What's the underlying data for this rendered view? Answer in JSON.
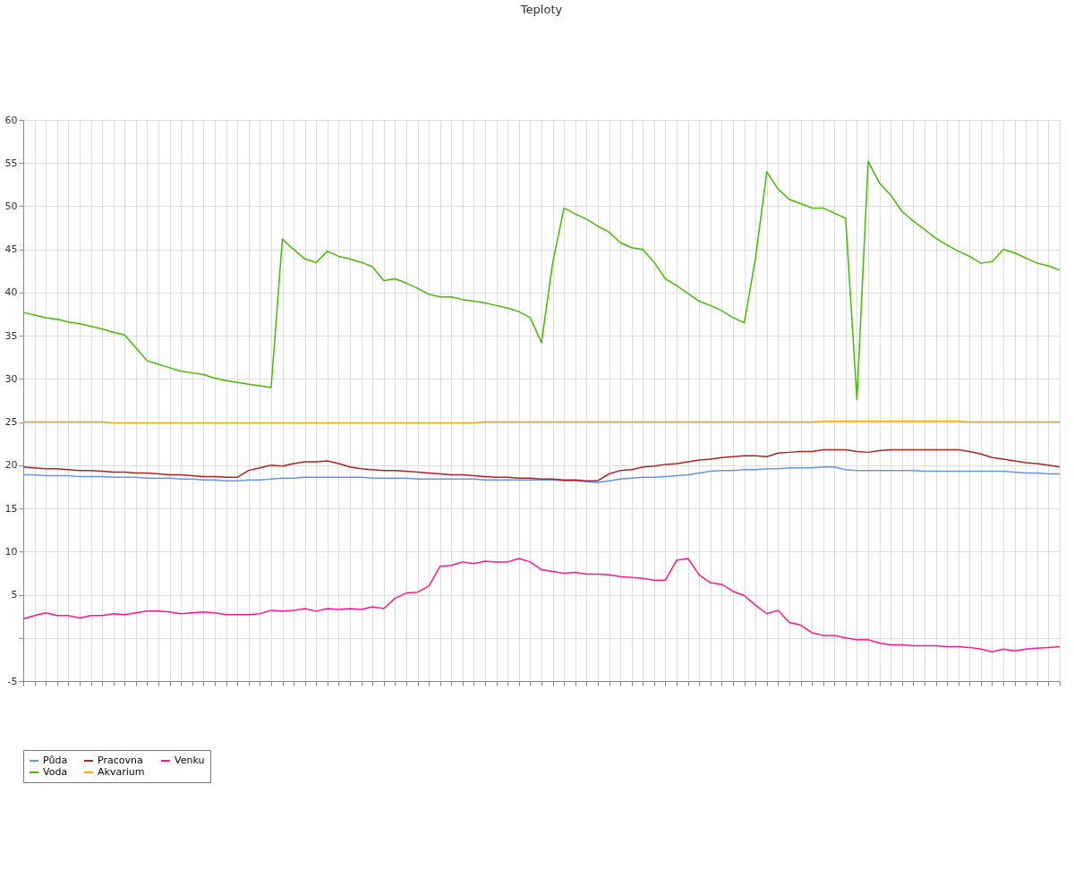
{
  "chart_data": {
    "type": "line",
    "title": "Teploty",
    "categories": [
      null,
      null,
      null,
      null,
      null,
      null,
      null,
      null,
      null,
      null,
      null,
      null,
      null,
      null,
      null,
      null,
      null,
      null,
      null,
      null,
      null,
      null,
      null,
      null,
      null,
      null,
      null,
      null,
      null,
      null,
      null,
      null,
      null,
      null,
      null,
      null,
      null,
      null,
      null,
      null,
      null,
      null,
      null,
      null,
      null,
      null,
      null,
      null,
      null,
      null,
      null,
      null,
      null,
      null,
      null,
      null,
      null,
      null,
      null,
      null,
      null,
      null,
      null,
      null,
      null,
      null,
      null,
      null,
      null,
      null,
      null,
      null,
      null,
      null,
      null,
      null,
      null,
      null,
      null,
      null,
      null,
      null,
      null,
      null,
      null,
      null,
      null,
      null,
      null,
      null,
      null,
      null,
      null
    ],
    "ylim": [
      -5,
      60
    ],
    "yticks": [
      -5,
      {
        "value": 0,
        "label": null
      },
      5,
      10,
      15,
      20,
      25,
      30,
      35,
      40,
      45,
      50,
      55,
      60
    ],
    "grid": true,
    "legend": "bottom",
    "marker": "none",
    "line_style": "solid",
    "series": [
      {
        "name": "Půda",
        "color": "#6495ed",
        "values": [
          18.9,
          18.9,
          18.8,
          18.8,
          18.8,
          18.7,
          18.7,
          18.7,
          18.6,
          18.6,
          18.6,
          18.5,
          18.5,
          18.5,
          18.4,
          18.4,
          18.3,
          18.3,
          18.2,
          18.2,
          18.3,
          18.3,
          18.4,
          18.5,
          18.5,
          18.6,
          18.6,
          18.6,
          18.6,
          18.6,
          18.6,
          18.5,
          18.5,
          18.5,
          18.5,
          18.4,
          18.4,
          18.4,
          18.4,
          18.4,
          18.4,
          18.3,
          18.3,
          18.3,
          18.3,
          18.3,
          18.3,
          18.3,
          18.2,
          18.2,
          18.1,
          18.0,
          18.2,
          18.4,
          18.5,
          18.6,
          18.6,
          18.7,
          18.8,
          18.9,
          19.1,
          19.3,
          19.4,
          19.4,
          19.5,
          19.5,
          19.6,
          19.6,
          19.7,
          19.7,
          19.7,
          19.8,
          19.8,
          19.5,
          19.4,
          19.4,
          19.4,
          19.4,
          19.4,
          19.4,
          19.3,
          19.3,
          19.3,
          19.3,
          19.3,
          19.3,
          19.3,
          19.3,
          19.2,
          19.1,
          19.1,
          19.0,
          19.0
        ]
      },
      {
        "name": "Voda",
        "color": "#44bb00",
        "values": [
          37.7,
          37.4,
          37.1,
          36.9,
          36.6,
          36.4,
          36.1,
          35.8,
          35.4,
          35.1,
          33.6,
          32.1,
          31.7,
          31.3,
          30.9,
          30.7,
          30.5,
          30.1,
          29.8,
          29.6,
          29.4,
          29.2,
          29.0,
          46.2,
          45.0,
          43.9,
          43.5,
          44.8,
          44.2,
          43.9,
          43.5,
          43.0,
          41.4,
          41.6,
          41.1,
          40.5,
          39.8,
          39.5,
          39.5,
          39.2,
          39.0,
          38.8,
          38.5,
          38.2,
          37.8,
          37.1,
          34.2,
          43.5,
          49.8,
          49.1,
          48.5,
          47.7,
          47.0,
          45.8,
          45.2,
          45.0,
          43.5,
          41.6,
          40.8,
          39.9,
          39.0,
          38.5,
          37.9,
          37.1,
          36.5,
          44.0,
          54.0,
          52.0,
          50.8,
          50.3,
          49.8,
          49.8,
          49.2,
          48.6,
          27.6,
          55.2,
          52.7,
          51.3,
          49.4,
          48.3,
          47.3,
          46.3,
          45.5,
          44.8,
          44.2,
          43.4,
          43.6,
          45.0,
          44.6,
          44.0,
          43.4,
          43.1,
          42.6
        ]
      },
      {
        "name": "Pracovna",
        "color": "#b22222",
        "values": [
          19.8,
          19.7,
          19.6,
          19.6,
          19.5,
          19.4,
          19.4,
          19.3,
          19.2,
          19.2,
          19.1,
          19.1,
          19.0,
          18.9,
          18.9,
          18.8,
          18.7,
          18.7,
          18.6,
          18.6,
          19.4,
          19.7,
          20.0,
          19.9,
          20.2,
          20.4,
          20.4,
          20.5,
          20.2,
          19.8,
          19.6,
          19.5,
          19.4,
          19.4,
          19.3,
          19.2,
          19.1,
          19.0,
          18.9,
          18.9,
          18.8,
          18.7,
          18.6,
          18.6,
          18.5,
          18.5,
          18.4,
          18.4,
          18.3,
          18.3,
          18.2,
          18.2,
          19.0,
          19.4,
          19.5,
          19.8,
          19.9,
          20.1,
          20.2,
          20.4,
          20.6,
          20.7,
          20.9,
          21.0,
          21.1,
          21.1,
          21.0,
          21.4,
          21.5,
          21.6,
          21.6,
          21.8,
          21.8,
          21.8,
          21.6,
          21.5,
          21.7,
          21.8,
          21.8,
          21.8,
          21.8,
          21.8,
          21.8,
          21.8,
          21.6,
          21.3,
          20.9,
          20.7,
          20.5,
          20.3,
          20.2,
          20.0,
          19.8
        ]
      },
      {
        "name": "Akvarium",
        "color": "#ffa500",
        "values": [
          25.0,
          25.0,
          25.0,
          25.0,
          25.0,
          25.0,
          25.0,
          25.0,
          24.9,
          24.9,
          24.9,
          24.9,
          24.9,
          24.9,
          24.9,
          24.9,
          24.9,
          24.9,
          24.9,
          24.9,
          24.9,
          24.9,
          24.9,
          24.9,
          24.9,
          24.9,
          24.9,
          24.9,
          24.9,
          24.9,
          24.9,
          24.9,
          24.9,
          24.9,
          24.9,
          24.9,
          24.9,
          24.9,
          24.9,
          24.9,
          24.9,
          25.0,
          25.0,
          25.0,
          25.0,
          25.0,
          25.0,
          25.0,
          25.0,
          25.0,
          25.0,
          25.0,
          25.0,
          25.0,
          25.0,
          25.0,
          25.0,
          25.0,
          25.0,
          25.0,
          25.0,
          25.0,
          25.0,
          25.0,
          25.0,
          25.0,
          25.0,
          25.0,
          25.0,
          25.0,
          25.0,
          25.1,
          25.1,
          25.1,
          25.1,
          25.1,
          25.1,
          25.1,
          25.1,
          25.1,
          25.1,
          25.1,
          25.1,
          25.1,
          25.0,
          25.0,
          25.0,
          25.0,
          25.0,
          25.0,
          25.0,
          25.0,
          25.0
        ]
      },
      {
        "name": "Venku",
        "color": "#ff1493",
        "values": [
          2.2,
          2.6,
          2.9,
          2.6,
          2.6,
          2.3,
          2.6,
          2.6,
          2.8,
          2.7,
          2.9,
          3.1,
          3.1,
          3.0,
          2.8,
          2.9,
          3.0,
          2.9,
          2.7,
          2.7,
          2.7,
          2.8,
          3.2,
          3.1,
          3.2,
          3.4,
          3.1,
          3.4,
          3.3,
          3.4,
          3.3,
          3.6,
          3.4,
          4.6,
          5.2,
          5.3,
          6.0,
          8.3,
          8.4,
          8.8,
          8.6,
          8.9,
          8.8,
          8.8,
          9.2,
          8.8,
          7.9,
          7.7,
          7.5,
          7.6,
          7.4,
          7.4,
          7.3,
          7.1,
          7.0,
          6.9,
          6.7,
          6.7,
          9.0,
          9.2,
          7.3,
          6.4,
          6.2,
          5.4,
          4.9,
          3.8,
          2.8,
          3.2,
          1.8,
          1.5,
          0.6,
          0.3,
          0.3,
          0.0,
          -0.2,
          -0.2,
          -0.6,
          -0.8,
          -0.8,
          -0.9,
          -0.9,
          -0.9,
          -1.0,
          -1.0,
          -1.1,
          -1.3,
          -1.6,
          -1.3,
          -1.5,
          -1.3,
          -1.2,
          -1.1,
          -1.0
        ]
      }
    ]
  }
}
